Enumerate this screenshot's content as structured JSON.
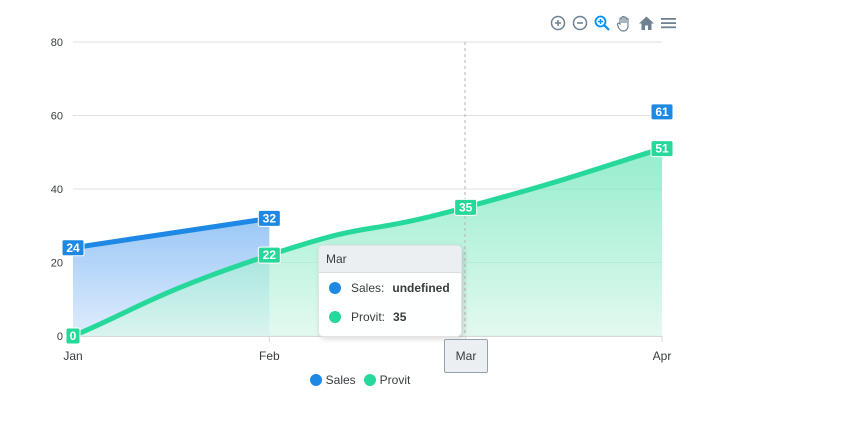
{
  "chart_data": {
    "type": "area",
    "categories": [
      "Jan",
      "Feb",
      "Mar",
      "Apr"
    ],
    "series": [
      {
        "name": "Sales",
        "values": [
          24,
          32,
          null,
          61
        ],
        "color": "#1e88e5"
      },
      {
        "name": "Provit",
        "values": [
          0,
          22,
          35,
          51
        ],
        "color": "#26d89a"
      }
    ],
    "ylim": [
      0,
      80
    ],
    "yticks": [
      "80",
      "60",
      "40",
      "20",
      "0"
    ],
    "grid": true,
    "legend_position": "bottom"
  },
  "tooltip": {
    "title": "Mar",
    "rows": [
      {
        "label": "Sales:",
        "value": "undefined",
        "color": "#1e88e5"
      },
      {
        "label": "Provit:",
        "value": "35",
        "color": "#26d89a"
      }
    ],
    "x_label": "Mar"
  },
  "toolbar": {
    "icons": [
      "zoom-in-icon",
      "zoom-out-icon",
      "selection-zoom-icon",
      "pan-hand-icon",
      "home-reset-icon",
      "menu-icon"
    ]
  }
}
